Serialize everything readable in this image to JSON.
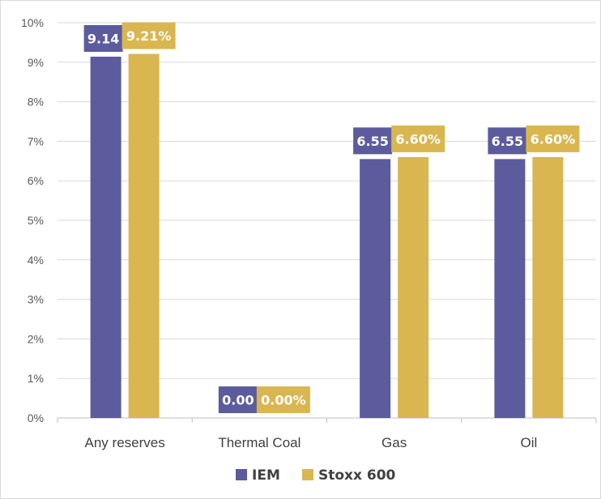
{
  "chart_data": {
    "type": "bar",
    "title": "",
    "xlabel": "",
    "ylabel": "",
    "categories": [
      "Any reserves",
      "Thermal Coal",
      "Gas",
      "Oil"
    ],
    "ylim": [
      0,
      10
    ],
    "yticks": [
      0,
      1,
      2,
      3,
      4,
      5,
      6,
      7,
      8,
      9,
      10
    ],
    "ytick_labels": [
      "0%",
      "1%",
      "2%",
      "3%",
      "4%",
      "5%",
      "6%",
      "7%",
      "8%",
      "9%",
      "10%"
    ],
    "grid": true,
    "legend_position": "bottom",
    "series": [
      {
        "name": "IEM",
        "color": "#5b5b9d",
        "values": [
          9.14,
          0.0,
          6.55,
          6.55
        ],
        "labels": [
          "9.14",
          "0.00",
          "6.55",
          "6.55"
        ]
      },
      {
        "name": "Stoxx 600",
        "color": "#d9b650",
        "values": [
          9.21,
          0.0,
          6.6,
          6.6
        ],
        "labels": [
          "9.21%",
          "0.00%",
          "6.60%",
          "6.60%"
        ]
      }
    ]
  }
}
